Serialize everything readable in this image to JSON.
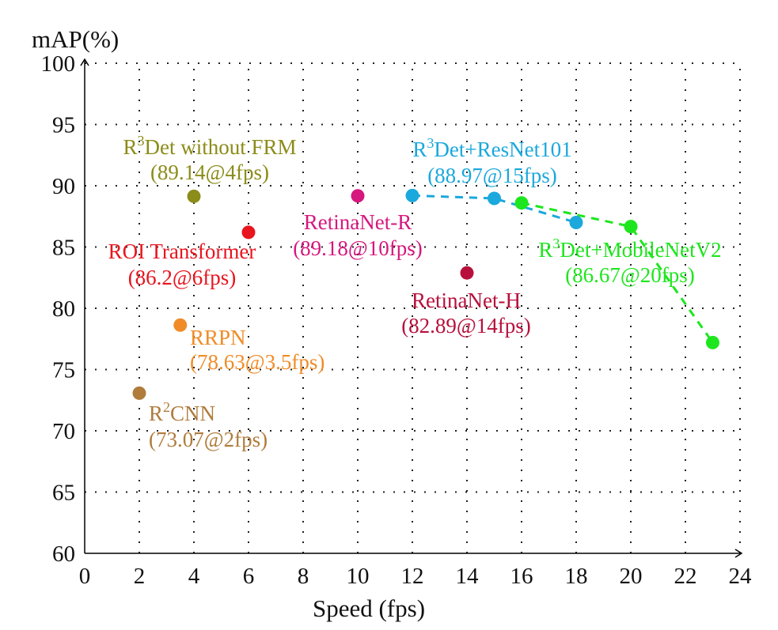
{
  "chart_data": {
    "type": "scatter",
    "title": "",
    "xlabel": "Speed (fps)",
    "ylabel": "mAP(%)",
    "xlim": [
      0,
      24
    ],
    "ylim": [
      60,
      100
    ],
    "xticks": [
      "0",
      "2",
      "4",
      "6",
      "8",
      "10",
      "12",
      "14",
      "16",
      "18",
      "20",
      "22",
      "24"
    ],
    "yticks": [
      "60",
      "65",
      "70",
      "75",
      "80",
      "85",
      "90",
      "95",
      "100"
    ],
    "grid": "dotted",
    "points": [
      {
        "name_pre": "R",
        "name_sup": "3",
        "name_post": "Det without FRM",
        "annotation": "(89.14@4fps)",
        "x": 4,
        "y": 89.14,
        "color": "#8c8c1a"
      },
      {
        "name_pre": "ROI Transformer",
        "name_sup": "",
        "name_post": "",
        "annotation": "(86.2@6fps)",
        "x": 6,
        "y": 86.2,
        "color": "#e8141e"
      },
      {
        "name_pre": "RRPN",
        "name_sup": "",
        "name_post": "",
        "annotation": "(78.63@3.5fps)",
        "x": 3.5,
        "y": 78.63,
        "color": "#f08c28"
      },
      {
        "name_pre": "R",
        "name_sup": "2",
        "name_post": "CNN",
        "annotation": "(73.07@2fps)",
        "x": 2,
        "y": 73.07,
        "color": "#b07c3c"
      },
      {
        "name_pre": "RetinaNet-R",
        "name_sup": "",
        "name_post": "",
        "annotation": "(89.18@10fps)",
        "x": 10,
        "y": 89.18,
        "color": "#d6187e"
      },
      {
        "name_pre": "RetinaNet-H",
        "name_sup": "",
        "name_post": "",
        "annotation": "(82.89@14fps)",
        "x": 14,
        "y": 82.89,
        "color": "#b8103c"
      }
    ],
    "series": [
      {
        "name_pre": "R",
        "name_sup": "3",
        "name_post": "Det+ResNet101",
        "annotation": "(88.97@15fps)",
        "color": "#1ba8dc",
        "x": [
          12,
          15,
          18
        ],
        "y": [
          89.2,
          88.97,
          87.0
        ]
      },
      {
        "name_pre": "R",
        "name_sup": "3",
        "name_post": "Det+MobileNetV2",
        "annotation": "(86.67@20fps)",
        "color": "#1ee61e",
        "x": [
          16,
          20,
          23
        ],
        "y": [
          88.6,
          86.67,
          77.2
        ]
      }
    ]
  }
}
